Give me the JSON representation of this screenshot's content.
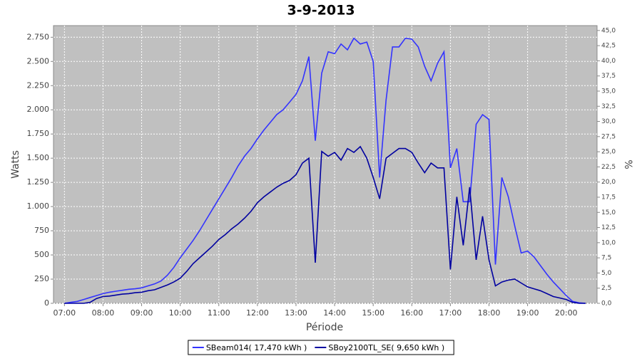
{
  "chart_data": {
    "type": "line",
    "title": "3-9-2013",
    "x_label": "Période",
    "y_label": "Watts",
    "y2_label": "%",
    "x": [
      "07:00",
      "07:10",
      "07:20",
      "07:30",
      "07:40",
      "07:50",
      "08:00",
      "08:10",
      "08:20",
      "08:30",
      "08:40",
      "08:50",
      "09:00",
      "09:10",
      "09:20",
      "09:30",
      "09:40",
      "09:50",
      "10:00",
      "10:10",
      "10:20",
      "10:30",
      "10:40",
      "10:50",
      "11:00",
      "11:10",
      "11:20",
      "11:30",
      "11:40",
      "11:50",
      "12:00",
      "12:10",
      "12:20",
      "12:30",
      "12:40",
      "12:50",
      "13:00",
      "13:10",
      "13:20",
      "13:30",
      "13:40",
      "13:50",
      "14:00",
      "14:10",
      "14:20",
      "14:30",
      "14:40",
      "14:50",
      "15:00",
      "15:10",
      "15:20",
      "15:30",
      "15:40",
      "15:50",
      "16:00",
      "16:10",
      "16:20",
      "16:30",
      "16:40",
      "16:50",
      "17:00",
      "17:10",
      "17:20",
      "17:30",
      "17:40",
      "17:50",
      "18:00",
      "18:10",
      "18:20",
      "18:30",
      "18:40",
      "18:50",
      "19:00",
      "19:10",
      "19:20",
      "19:30",
      "19:40",
      "19:50",
      "20:00",
      "20:10",
      "20:20",
      "20:30"
    ],
    "series": [
      {
        "name": "SBeam014( 17,470 kWh )",
        "color": "#3333ff",
        "values": [
          0,
          10,
          20,
          40,
          60,
          80,
          100,
          115,
          125,
          135,
          145,
          150,
          160,
          180,
          200,
          230,
          290,
          370,
          470,
          560,
          650,
          750,
          860,
          970,
          1080,
          1190,
          1300,
          1420,
          1520,
          1600,
          1700,
          1790,
          1870,
          1950,
          2000,
          2080,
          2160,
          2300,
          2550,
          1680,
          2380,
          2600,
          2580,
          2680,
          2620,
          2740,
          2680,
          2700,
          2500,
          1300,
          2100,
          2650,
          2650,
          2740,
          2730,
          2650,
          2450,
          2300,
          2480,
          2600,
          1400,
          1600,
          1050,
          1050,
          1850,
          1950,
          1900,
          400,
          1300,
          1100,
          800,
          520,
          540,
          480,
          390,
          300,
          220,
          150,
          80,
          20,
          5,
          0
        ]
      },
      {
        "name": "SBoy2100TL_SE( 9,650 kWh )",
        "color": "#0000a0",
        "values": [
          0,
          0,
          0,
          0,
          10,
          50,
          70,
          75,
          85,
          95,
          100,
          110,
          115,
          130,
          140,
          165,
          190,
          220,
          260,
          330,
          410,
          470,
          530,
          590,
          660,
          710,
          770,
          820,
          880,
          950,
          1040,
          1100,
          1150,
          1200,
          1240,
          1270,
          1330,
          1450,
          1500,
          420,
          1570,
          1520,
          1560,
          1480,
          1600,
          1560,
          1620,
          1500,
          1300,
          1080,
          1500,
          1550,
          1600,
          1600,
          1560,
          1450,
          1350,
          1450,
          1400,
          1400,
          350,
          1100,
          600,
          1200,
          450,
          900,
          450,
          180,
          220,
          240,
          250,
          210,
          170,
          150,
          130,
          100,
          70,
          55,
          40,
          10,
          0,
          0
        ]
      }
    ],
    "xlim": [
      "06:43",
      "20:48"
    ],
    "xticks": [
      "07:00",
      "08:00",
      "09:00",
      "10:00",
      "11:00",
      "12:00",
      "13:00",
      "14:00",
      "15:00",
      "16:00",
      "17:00",
      "18:00",
      "19:00",
      "20:00"
    ],
    "ylim": [
      0,
      2870
    ],
    "yticks": [
      0,
      250,
      500,
      750,
      {
        "value": 1000,
        "label": "1.000"
      },
      {
        "value": 1250,
        "label": "1.250"
      },
      {
        "value": 1500,
        "label": "1.500"
      },
      {
        "value": 1750,
        "label": "1.750"
      },
      {
        "value": 2000,
        "label": "2.000"
      },
      {
        "value": 2250,
        "label": "2.250"
      },
      {
        "value": 2500,
        "label": "2.500"
      },
      {
        "value": 2750,
        "label": "2.750"
      }
    ],
    "y2lim": [
      0,
      45.8
    ],
    "y2ticks": [
      {
        "value": 0,
        "label": "0,0"
      },
      {
        "value": 2.5,
        "label": "2,5"
      },
      {
        "value": 5,
        "label": "5,0"
      },
      {
        "value": 7.5,
        "label": "7,5"
      },
      {
        "value": 10,
        "label": "10,0"
      },
      {
        "value": 12.5,
        "label": "12,5"
      },
      {
        "value": 15,
        "label": "15,0"
      },
      {
        "value": 17.5,
        "label": "17,5"
      },
      {
        "value": 20,
        "label": "20,0"
      },
      {
        "value": 22.5,
        "label": "22,5"
      },
      {
        "value": 25,
        "label": "25,0"
      },
      {
        "value": 27.5,
        "label": "27,5"
      },
      {
        "value": 30,
        "label": "30,0"
      },
      {
        "value": 32.5,
        "label": "32,5"
      },
      {
        "value": 35,
        "label": "35,0"
      },
      {
        "value": 37.5,
        "label": "37,5"
      },
      {
        "value": 40,
        "label": "40,0"
      },
      {
        "value": 42.5,
        "label": "42,5"
      },
      {
        "value": 45,
        "label": "45,0"
      }
    ],
    "grid": true,
    "plot_background": "#c0c0c0",
    "legend": "bottom"
  }
}
